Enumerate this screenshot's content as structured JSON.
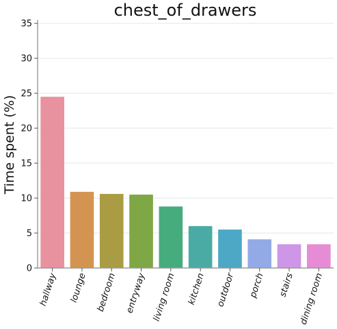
{
  "chart_data": {
    "type": "bar",
    "title": "chest_of_drawers",
    "xlabel": "",
    "ylabel": "Time spent (%)",
    "ylim": [
      0,
      35.5
    ],
    "yticks": [
      0,
      5,
      10,
      15,
      20,
      25,
      30,
      35
    ],
    "grid": true,
    "legend": "none",
    "categories": [
      "hallway",
      "lounge",
      "bedroom",
      "entryway",
      "living room",
      "kitchen",
      "outdoor",
      "porch",
      "stairs",
      "dining room"
    ],
    "values": [
      24.5,
      10.9,
      10.6,
      10.5,
      8.8,
      6.0,
      5.5,
      4.1,
      3.4,
      3.4
    ],
    "colors": [
      "#e8919f",
      "#d49451",
      "#aa9c44",
      "#7fa746",
      "#46ac7d",
      "#4aaba4",
      "#4ca8c4",
      "#93aae6",
      "#cd96e6",
      "#e68cd4"
    ]
  }
}
